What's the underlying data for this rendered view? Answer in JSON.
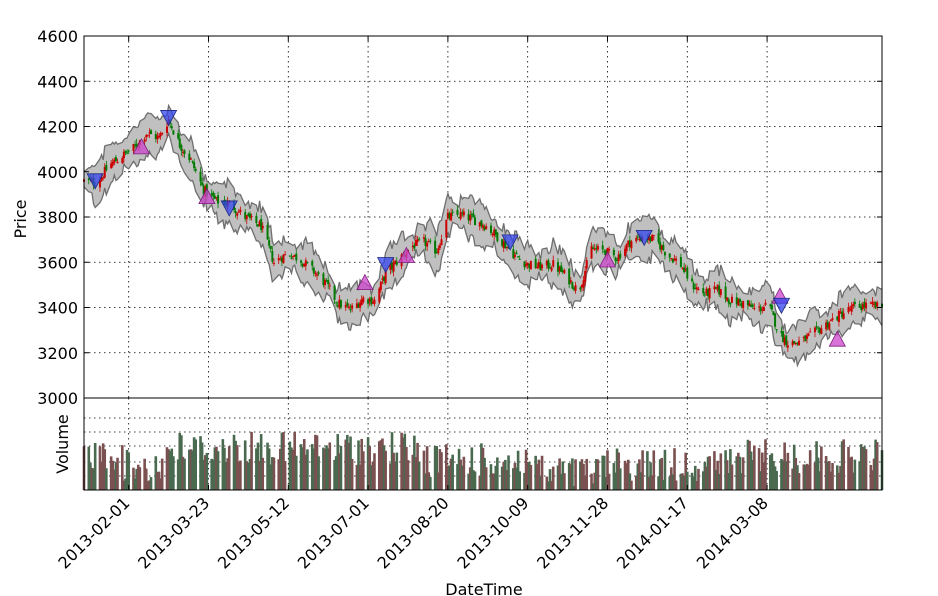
{
  "chart_data": {
    "type": "candlestick",
    "x_type": "date",
    "xlabel": "DateTime",
    "price_panel": {
      "ylabel": "Price",
      "ylim": [
        3000,
        4600
      ],
      "yticks": [
        3000,
        3200,
        3400,
        3600,
        3800,
        4000,
        4200,
        4400,
        4600
      ],
      "grid": true
    },
    "volume_panel": {
      "ylabel": "Volume",
      "grid": true
    },
    "xlim": [
      "2013-01-04",
      "2014-05-19"
    ],
    "xticks": [
      "2013-02-01",
      "2013-03-23",
      "2013-05-12",
      "2013-07-01",
      "2013-08-20",
      "2013-10-09",
      "2013-11-28",
      "2014-01-17",
      "2014-03-08"
    ],
    "close_anchors": [
      [
        "2013-01-04",
        3960
      ],
      [
        "2013-01-12",
        3950
      ],
      [
        "2013-01-20",
        4030
      ],
      [
        "2013-01-28",
        4070
      ],
      [
        "2013-02-05",
        4110
      ],
      [
        "2013-02-12",
        4170
      ],
      [
        "2013-02-20",
        4150
      ],
      [
        "2013-02-26",
        4230
      ],
      [
        "2013-03-05",
        4120
      ],
      [
        "2013-03-12",
        4050
      ],
      [
        "2013-03-20",
        3920
      ],
      [
        "2013-03-28",
        3870
      ],
      [
        "2013-04-05",
        3860
      ],
      [
        "2013-04-15",
        3800
      ],
      [
        "2013-04-25",
        3760
      ],
      [
        "2013-05-03",
        3600
      ],
      [
        "2013-05-12",
        3640
      ],
      [
        "2013-05-20",
        3610
      ],
      [
        "2013-05-28",
        3560
      ],
      [
        "2013-06-05",
        3500
      ],
      [
        "2013-06-12",
        3420
      ],
      [
        "2013-06-20",
        3390
      ],
      [
        "2013-06-28",
        3440
      ],
      [
        "2013-07-05",
        3430
      ],
      [
        "2013-07-12",
        3550
      ],
      [
        "2013-07-20",
        3610
      ],
      [
        "2013-07-28",
        3670
      ],
      [
        "2013-08-05",
        3690
      ],
      [
        "2013-08-13",
        3650
      ],
      [
        "2013-08-20",
        3800
      ],
      [
        "2013-08-28",
        3810
      ],
      [
        "2013-09-05",
        3790
      ],
      [
        "2013-09-13",
        3760
      ],
      [
        "2013-09-22",
        3700
      ],
      [
        "2013-10-01",
        3630
      ],
      [
        "2013-10-09",
        3590
      ],
      [
        "2013-10-17",
        3580
      ],
      [
        "2013-10-25",
        3590
      ],
      [
        "2013-11-02",
        3540
      ],
      [
        "2013-11-10",
        3470
      ],
      [
        "2013-11-18",
        3660
      ],
      [
        "2013-11-26",
        3650
      ],
      [
        "2013-12-04",
        3620
      ],
      [
        "2013-12-12",
        3690
      ],
      [
        "2013-12-20",
        3710
      ],
      [
        "2013-12-28",
        3700
      ],
      [
        "2014-01-05",
        3630
      ],
      [
        "2014-01-12",
        3600
      ],
      [
        "2014-01-20",
        3500
      ],
      [
        "2014-01-28",
        3460
      ],
      [
        "2014-02-05",
        3480
      ],
      [
        "2014-02-13",
        3430
      ],
      [
        "2014-02-21",
        3420
      ],
      [
        "2014-03-01",
        3390
      ],
      [
        "2014-03-09",
        3410
      ],
      [
        "2014-03-16",
        3280
      ],
      [
        "2014-03-22",
        3240
      ],
      [
        "2014-03-30",
        3250
      ],
      [
        "2014-04-07",
        3290
      ],
      [
        "2014-04-15",
        3330
      ],
      [
        "2014-04-23",
        3370
      ],
      [
        "2014-05-01",
        3400
      ],
      [
        "2014-05-10",
        3410
      ],
      [
        "2014-05-19",
        3400
      ]
    ],
    "buy_signals": [
      [
        "2013-02-09",
        4110
      ],
      [
        "2013-03-22",
        3890
      ],
      [
        "2013-06-29",
        3510
      ],
      [
        "2013-07-25",
        3630
      ],
      [
        "2013-11-28",
        3610
      ],
      [
        "2014-03-16",
        3450
      ],
      [
        "2014-04-21",
        3260
      ]
    ],
    "sell_signals": [
      [
        "2013-01-11",
        3960
      ],
      [
        "2013-02-26",
        4240
      ],
      [
        "2013-04-05",
        3840
      ],
      [
        "2013-07-12",
        3590
      ],
      [
        "2013-09-28",
        3690
      ],
      [
        "2013-12-21",
        3710
      ],
      [
        "2014-03-17",
        3410
      ]
    ],
    "colors": {
      "up": "#cc0000",
      "down": "#007a00",
      "band_fill": "#c0c0c0",
      "band_edge": "#6e6e6e",
      "buy_marker": "#cc44cc",
      "sell_marker": "#3344ee",
      "volume_up": "#7a5050",
      "volume_down": "#4a6a50"
    }
  }
}
